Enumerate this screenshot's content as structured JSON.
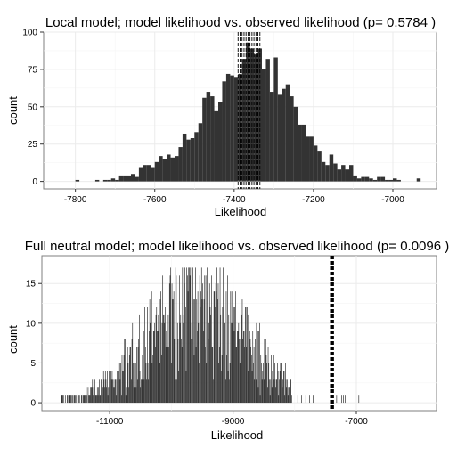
{
  "chart_data": [
    {
      "type": "bar",
      "title": "Local model; model likelihood vs. observed likelihood (p= 0.5784 )",
      "xlabel": "Likelihood",
      "ylabel": "count",
      "xlim": [
        -7880,
        -6890
      ],
      "ylim": [
        -5,
        100
      ],
      "x_ticks": [
        -7800,
        -7600,
        -7400,
        -7200,
        -7000
      ],
      "x_tick_labels": [
        "-7800",
        "-7600",
        "-7400",
        "-7200",
        "-7000"
      ],
      "y_ticks": [
        0,
        25,
        50,
        75,
        100
      ],
      "y_tick_labels": [
        "0",
        "25",
        "50",
        "75",
        "100"
      ],
      "grid": true,
      "bar_color": "#333333",
      "bin_width": 10,
      "bins": [
        [
          -7795,
          1
        ],
        [
          -7745,
          1
        ],
        [
          -7725,
          1
        ],
        [
          -7715,
          1
        ],
        [
          -7705,
          2
        ],
        [
          -7695,
          1
        ],
        [
          -7685,
          4
        ],
        [
          -7675,
          4
        ],
        [
          -7665,
          4
        ],
        [
          -7655,
          5
        ],
        [
          -7645,
          3
        ],
        [
          -7635,
          9
        ],
        [
          -7625,
          11
        ],
        [
          -7615,
          11
        ],
        [
          -7605,
          9
        ],
        [
          -7595,
          13
        ],
        [
          -7585,
          17
        ],
        [
          -7575,
          15
        ],
        [
          -7565,
          18
        ],
        [
          -7555,
          16
        ],
        [
          -7545,
          17
        ],
        [
          -7535,
          23
        ],
        [
          -7525,
          32
        ],
        [
          -7515,
          28
        ],
        [
          -7505,
          29
        ],
        [
          -7495,
          33
        ],
        [
          -7485,
          39
        ],
        [
          -7475,
          56
        ],
        [
          -7465,
          60
        ],
        [
          -7455,
          57
        ],
        [
          -7445,
          47
        ],
        [
          -7435,
          53
        ],
        [
          -7425,
          67
        ],
        [
          -7415,
          72
        ],
        [
          -7405,
          71
        ],
        [
          -7395,
          70
        ],
        [
          -7385,
          72
        ],
        [
          -7375,
          82
        ],
        [
          -7365,
          93
        ],
        [
          -7355,
          89
        ],
        [
          -7345,
          85
        ],
        [
          -7335,
          89
        ],
        [
          -7325,
          75
        ],
        [
          -7315,
          82
        ],
        [
          -7305,
          60
        ],
        [
          -7295,
          83
        ],
        [
          -7285,
          58
        ],
        [
          -7275,
          62
        ],
        [
          -7265,
          65
        ],
        [
          -7255,
          57
        ],
        [
          -7245,
          50
        ],
        [
          -7235,
          38
        ],
        [
          -7225,
          38
        ],
        [
          -7215,
          30
        ],
        [
          -7205,
          30
        ],
        [
          -7195,
          24
        ],
        [
          -7185,
          20
        ],
        [
          -7175,
          13
        ],
        [
          -7165,
          11
        ],
        [
          -7155,
          18
        ],
        [
          -7145,
          12
        ],
        [
          -7135,
          8
        ],
        [
          -7125,
          11
        ],
        [
          -7115,
          8
        ],
        [
          -7105,
          11
        ],
        [
          -7095,
          4
        ],
        [
          -7085,
          2
        ],
        [
          -7075,
          3
        ],
        [
          -7065,
          3
        ],
        [
          -7055,
          2
        ],
        [
          -7045,
          1
        ],
        [
          -7035,
          3
        ],
        [
          -7025,
          3
        ],
        [
          -7015,
          1
        ],
        [
          -7005,
          1
        ],
        [
          -6995,
          2
        ],
        [
          -6985,
          1
        ],
        [
          -6935,
          2
        ]
      ],
      "observed_likelihood_range": [
        -7390,
        -7335
      ],
      "observed_line_style": "dashed",
      "observed_line_color": "#000000"
    },
    {
      "type": "bar",
      "title": "Full neutral model; model likelihood vs. observed likelihood (p= 0.0096 )",
      "xlabel": "Likelihood",
      "ylabel": "count",
      "xlim": [
        -12100,
        -5700
      ],
      "ylim": [
        -1,
        18.5
      ],
      "x_ticks": [
        -11000,
        -9000,
        -7000
      ],
      "x_tick_labels": [
        "-11000",
        "-9000",
        "-7000"
      ],
      "y_ticks": [
        0,
        5,
        10,
        15
      ],
      "y_tick_labels": [
        "0",
        "5",
        "10",
        "15"
      ],
      "grid": true,
      "bar_color": "#333333",
      "observed_likelihood_range": [
        -7420,
        -7370
      ],
      "observed_line_style": "dashed",
      "observed_line_color": "#000000"
    }
  ]
}
